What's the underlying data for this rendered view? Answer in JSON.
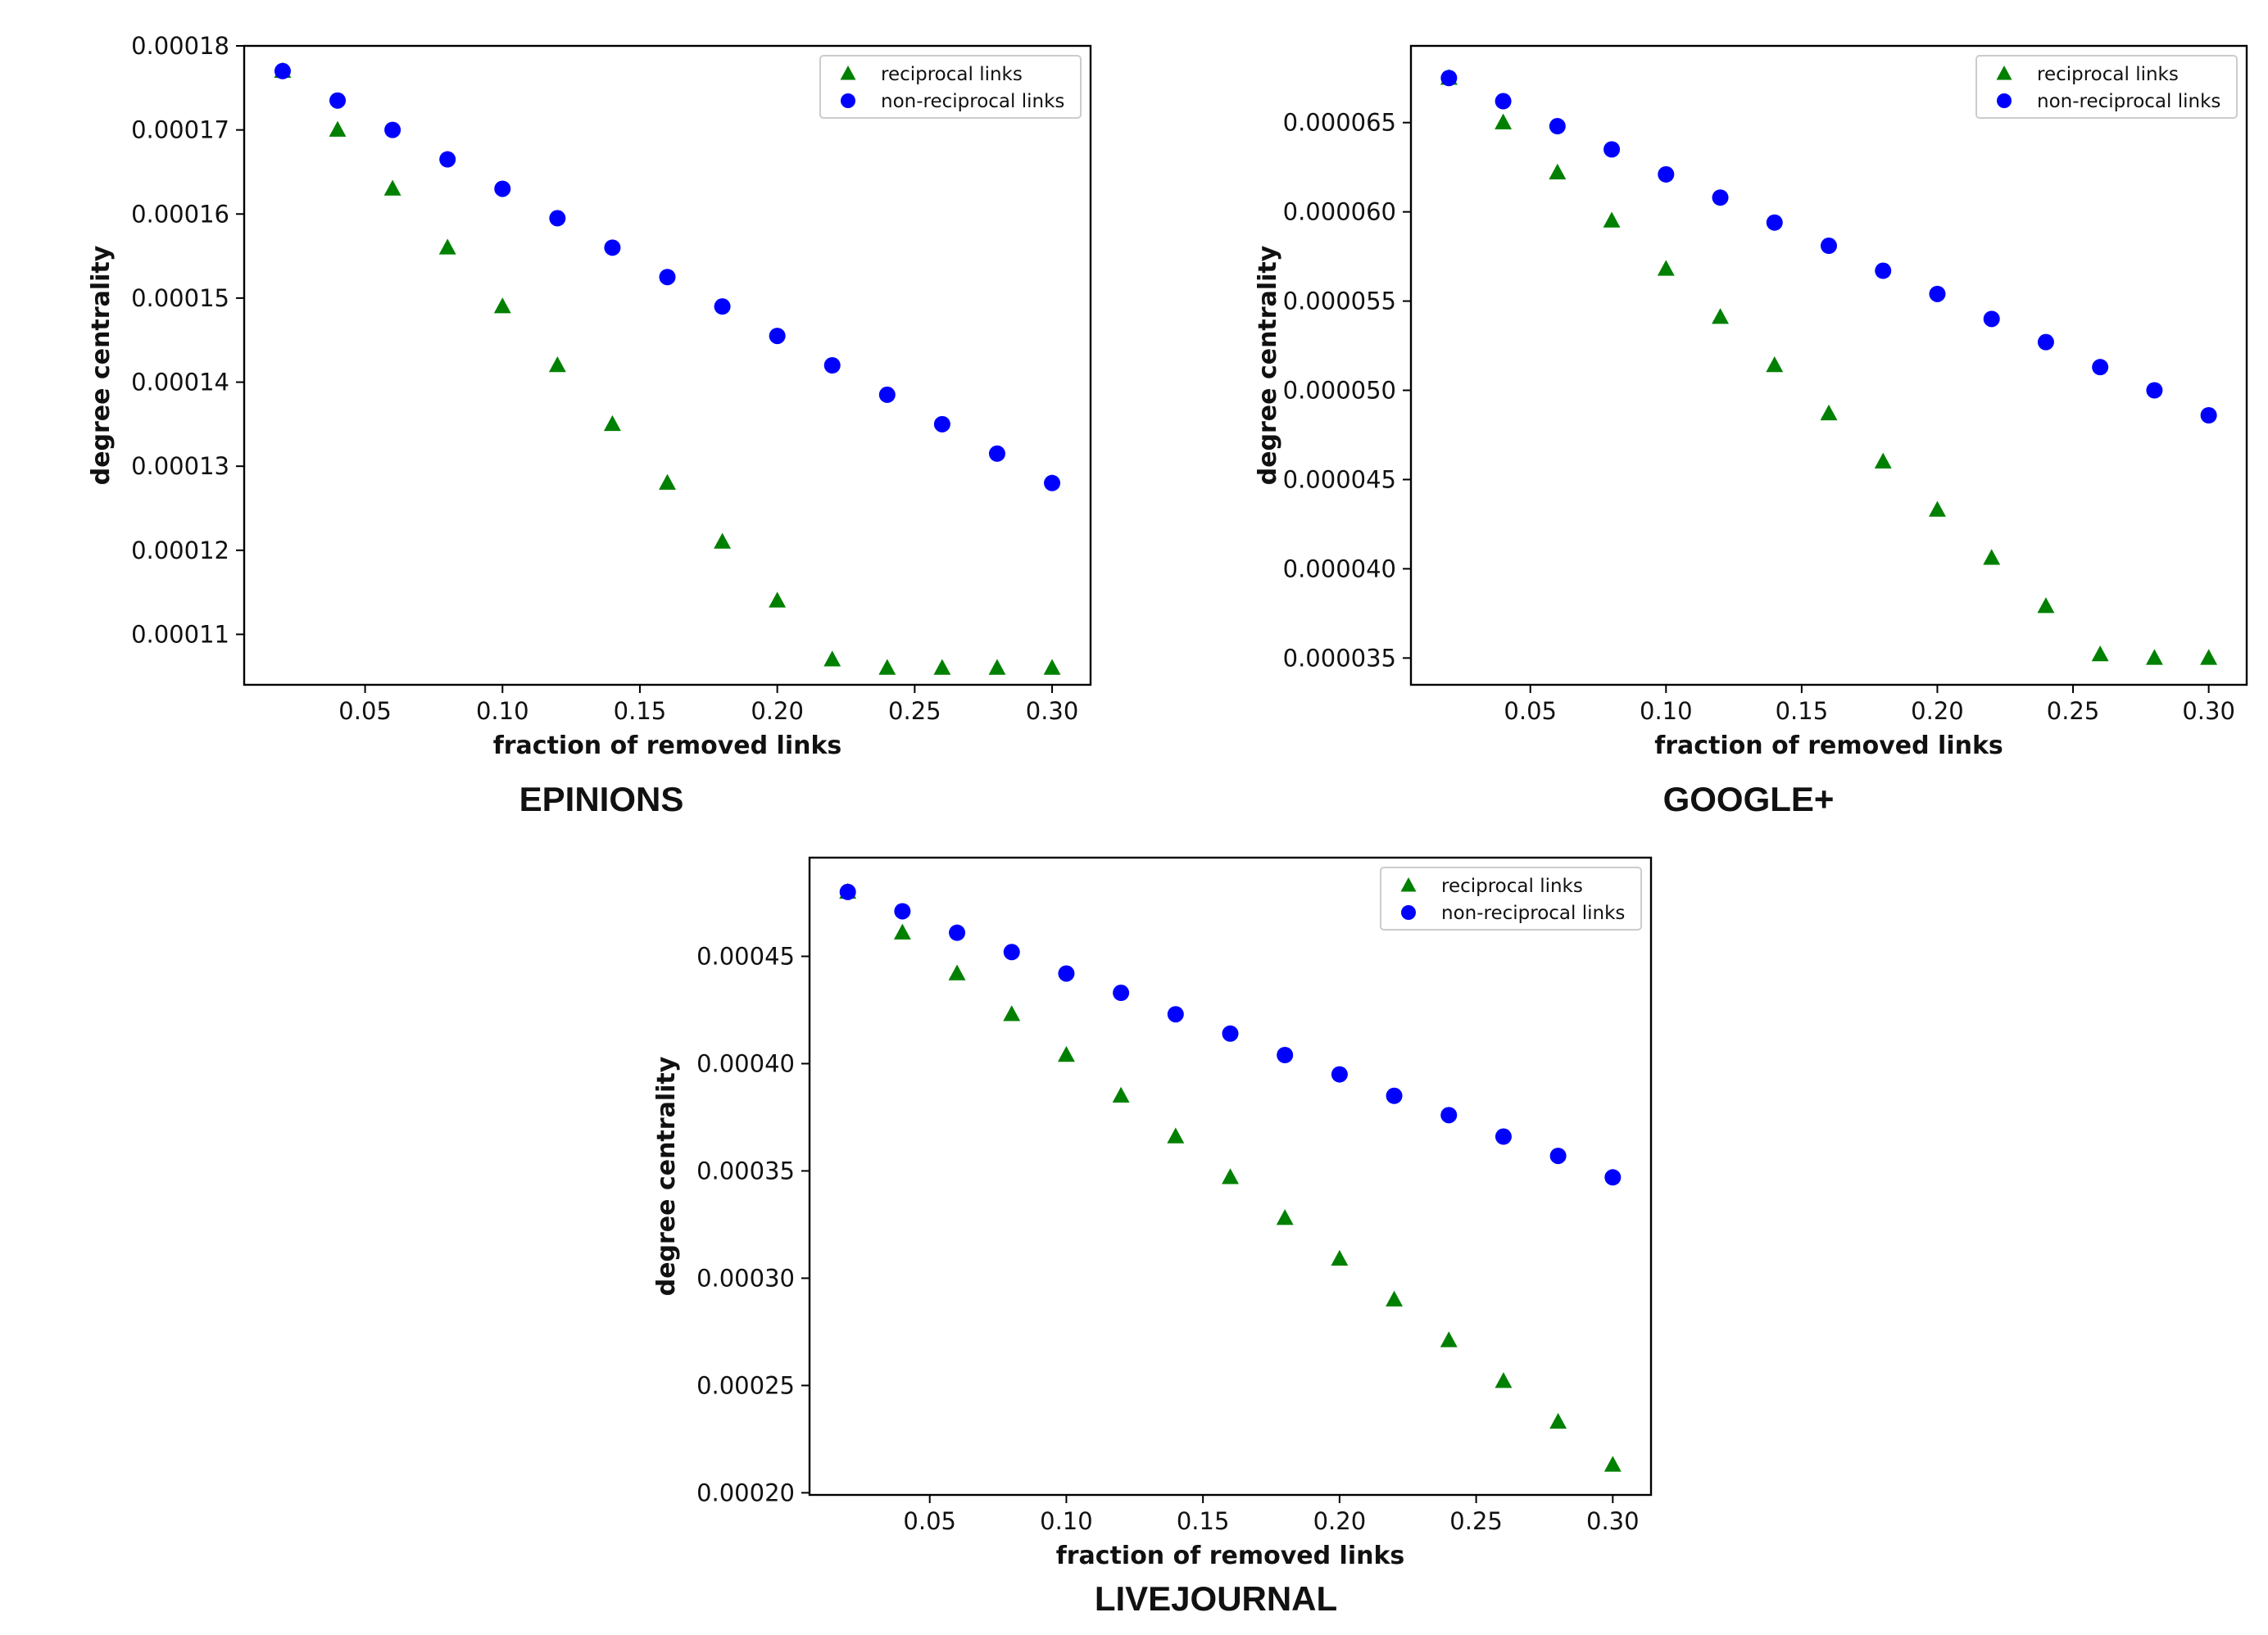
{
  "colors": {
    "reciprocal": "#008000",
    "nonreciprocal": "#0000ff",
    "axes": "#000000"
  },
  "chart_data": [
    {
      "type": "scatter",
      "title": "EPINIONS",
      "xlabel": "fraction of removed links",
      "ylabel": "degree centrality",
      "xlim": [
        0.006,
        0.314
      ],
      "ylim": [
        0.000104,
        0.00018
      ],
      "xticks": [
        0.05,
        0.1,
        0.15,
        0.2,
        0.25,
        0.3
      ],
      "xtick_labels": [
        "0.05",
        "0.10",
        "0.15",
        "0.20",
        "0.25",
        "0.30"
      ],
      "yticks": [
        0.00011,
        0.00012,
        0.00013,
        0.00014,
        0.00015,
        0.00016,
        0.00017,
        0.00018
      ],
      "ytick_labels": [
        "0.00011",
        "0.00012",
        "0.00013",
        "0.00014",
        "0.00015",
        "0.00016",
        "0.00017",
        "0.00018"
      ],
      "legend_position": "top-right",
      "x": [
        0.02,
        0.04,
        0.06,
        0.08,
        0.1,
        0.12,
        0.14,
        0.16,
        0.18,
        0.2,
        0.22,
        0.24,
        0.26,
        0.28,
        0.3
      ],
      "series": [
        {
          "name": "reciprocal links",
          "marker": "triangle",
          "values": [
            0.000177,
            0.00017,
            0.000163,
            0.000156,
            0.000149,
            0.000142,
            0.000135,
            0.000128,
            0.000121,
            0.000114,
            0.000107,
            0.000106,
            0.000106,
            0.000106,
            0.000106
          ]
        },
        {
          "name": "non-reciprocal links",
          "marker": "circle",
          "values": [
            0.000177,
            0.0001735,
            0.00017,
            0.0001665,
            0.000163,
            0.0001595,
            0.000156,
            0.0001525,
            0.000149,
            0.0001455,
            0.000142,
            0.0001385,
            0.000135,
            0.0001315,
            0.000128
          ]
        }
      ]
    },
    {
      "type": "scatter",
      "title": "GOOGLE+",
      "xlabel": "fraction of removed links",
      "ylabel": "degree centrality",
      "xlim": [
        0.006,
        0.314
      ],
      "ylim": [
        3.35e-05,
        6.93e-05
      ],
      "xticks": [
        0.05,
        0.1,
        0.15,
        0.2,
        0.25,
        0.3
      ],
      "xtick_labels": [
        "0.05",
        "0.10",
        "0.15",
        "0.20",
        "0.25",
        "0.30"
      ],
      "yticks": [
        3.5e-05,
        4e-05,
        4.5e-05,
        5e-05,
        5.5e-05,
        6e-05,
        6.5e-05
      ],
      "ytick_labels": [
        "0.000035",
        "0.000040",
        "0.000045",
        "0.000050",
        "0.000055",
        "0.000060",
        "0.000065"
      ],
      "legend_position": "top-right",
      "x": [
        0.02,
        0.04,
        0.06,
        0.08,
        0.1,
        0.12,
        0.14,
        0.16,
        0.18,
        0.2,
        0.22,
        0.24,
        0.26,
        0.28,
        0.3
      ],
      "series": [
        {
          "name": "reciprocal links",
          "marker": "triangle",
          "values": [
            6.75e-05,
            6.5e-05,
            6.22e-05,
            5.95e-05,
            5.68e-05,
            5.41e-05,
            5.14e-05,
            4.87e-05,
            4.6e-05,
            4.33e-05,
            4.06e-05,
            3.79e-05,
            3.52e-05,
            3.5e-05,
            3.5e-05
          ]
        },
        {
          "name": "non-reciprocal links",
          "marker": "circle",
          "values": [
            6.75e-05,
            6.62e-05,
            6.48e-05,
            6.35e-05,
            6.21e-05,
            6.08e-05,
            5.94e-05,
            5.81e-05,
            5.67e-05,
            5.54e-05,
            5.4e-05,
            5.27e-05,
            5.13e-05,
            5e-05,
            4.86e-05
          ]
        }
      ]
    },
    {
      "type": "scatter",
      "title": "LIVEJOURNAL",
      "xlabel": "fraction of removed links",
      "ylabel": "degree centrality",
      "xlim": [
        0.006,
        0.314
      ],
      "ylim": [
        0.000199,
        0.000496
      ],
      "xticks": [
        0.05,
        0.1,
        0.15,
        0.2,
        0.25,
        0.3
      ],
      "xtick_labels": [
        "0.05",
        "0.10",
        "0.15",
        "0.20",
        "0.25",
        "0.30"
      ],
      "yticks": [
        0.0002,
        0.00025,
        0.0003,
        0.00035,
        0.0004,
        0.00045
      ],
      "ytick_labels": [
        "0.00020",
        "0.00025",
        "0.00030",
        "0.00035",
        "0.00040",
        "0.00045"
      ],
      "legend_position": "top-right",
      "x": [
        0.02,
        0.04,
        0.06,
        0.08,
        0.1,
        0.12,
        0.14,
        0.16,
        0.18,
        0.2,
        0.22,
        0.24,
        0.26,
        0.28,
        0.3
      ],
      "series": [
        {
          "name": "reciprocal links",
          "marker": "triangle",
          "values": [
            0.00048,
            0.000461,
            0.000442,
            0.000423,
            0.000404,
            0.000385,
            0.000366,
            0.000347,
            0.000328,
            0.000309,
            0.00029,
            0.000271,
            0.000252,
            0.000233,
            0.000213
          ]
        },
        {
          "name": "non-reciprocal links",
          "marker": "circle",
          "values": [
            0.00048,
            0.000471,
            0.000461,
            0.000452,
            0.000442,
            0.000433,
            0.000423,
            0.000414,
            0.000404,
            0.000395,
            0.000385,
            0.000376,
            0.000366,
            0.000357,
            0.000347
          ]
        }
      ]
    }
  ]
}
